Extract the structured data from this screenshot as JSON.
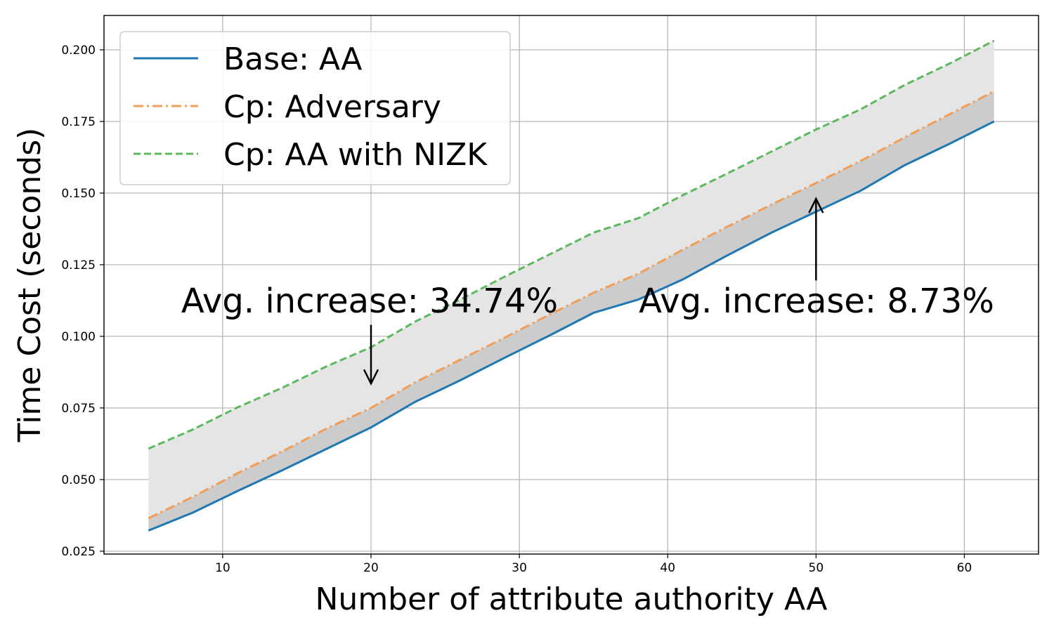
{
  "chart_data": {
    "type": "line",
    "title": "",
    "xlabel": "Number of attribute authority AA",
    "ylabel": "Time Cost (seconds)",
    "xlim": [
      2,
      65
    ],
    "ylim": [
      0.024,
      0.212
    ],
    "grid": true,
    "legend_position": "top-left",
    "x_ticks": [
      10,
      20,
      30,
      40,
      50,
      60
    ],
    "y_ticks": [
      0.025,
      0.05,
      0.075,
      0.1,
      0.125,
      0.15,
      0.175,
      0.2
    ],
    "x_tick_labels": [
      "10",
      "20",
      "30",
      "40",
      "50",
      "60"
    ],
    "y_tick_labels": [
      "0.025",
      "0.050",
      "0.075",
      "0.100",
      "0.125",
      "0.150",
      "0.175",
      "0.200"
    ],
    "x": [
      5,
      8,
      11,
      14,
      17,
      20,
      23,
      26,
      29,
      32,
      35,
      38,
      41,
      44,
      47,
      50,
      53,
      56,
      59,
      62
    ],
    "series": [
      {
        "name": "Base: AA",
        "color": "#1f77b4",
        "style": "solid",
        "values": [
          0.0322,
          0.0385,
          0.046,
          0.0532,
          0.0607,
          0.0682,
          0.0772,
          0.0846,
          0.0925,
          0.1002,
          0.1082,
          0.1128,
          0.1198,
          0.1282,
          0.1362,
          0.1435,
          0.1508,
          0.1598,
          0.1672,
          0.175
        ]
      },
      {
        "name": "Cp: Adversary",
        "color": "#f39c54",
        "style": "dashdot",
        "values": [
          0.0365,
          0.044,
          0.0522,
          0.0598,
          0.0678,
          0.075,
          0.084,
          0.0918,
          0.0995,
          0.1075,
          0.1152,
          0.1218,
          0.1302,
          0.1382,
          0.146,
          0.1535,
          0.1612,
          0.1695,
          0.1775,
          0.1855
        ]
      },
      {
        "name": "Cp: AA with NIZK",
        "color": "#5cb85c",
        "style": "dashed",
        "values": [
          0.0608,
          0.0675,
          0.0752,
          0.082,
          0.0895,
          0.0962,
          0.1052,
          0.1128,
          0.1208,
          0.1285,
          0.1362,
          0.1412,
          0.1492,
          0.1568,
          0.1645,
          0.1722,
          0.1792,
          0.1878,
          0.1952,
          0.2032
        ]
      }
    ],
    "fills": [
      {
        "between": [
          "Cp: Adversary",
          "Cp: AA with NIZK"
        ],
        "color": "#e5e5e5"
      },
      {
        "between": [
          "Base: AA",
          "Cp: Adversary"
        ],
        "color": "#cccccc"
      }
    ],
    "annotations": [
      {
        "text": "Avg. increase: 34.74%",
        "arrow_x": 20,
        "arrow_from_y": 0.104,
        "arrow_to_y": 0.0835,
        "direction": "down"
      },
      {
        "text": "Avg. increase: 8.73%",
        "arrow_x": 50,
        "arrow_from_y": 0.1195,
        "arrow_to_y": 0.148,
        "direction": "up"
      }
    ]
  }
}
